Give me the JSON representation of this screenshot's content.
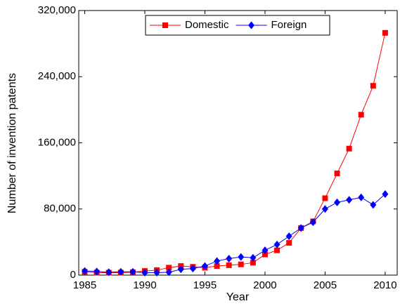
{
  "chart_data": {
    "type": "line",
    "xlabel": "Year",
    "ylabel": "Number of invention patents",
    "x": [
      1985,
      1986,
      1987,
      1988,
      1989,
      1990,
      1991,
      1992,
      1993,
      1994,
      1995,
      1996,
      1997,
      1998,
      1999,
      2000,
      2001,
      2002,
      2003,
      2004,
      2005,
      2006,
      2007,
      2008,
      2009,
      2010
    ],
    "series": [
      {
        "name": "Domestic",
        "color": "#ff0000",
        "marker": "square",
        "values": [
          4000,
          3000,
          3000,
          3000,
          3500,
          5000,
          6000,
          9000,
          11000,
          10000,
          9000,
          11000,
          12000,
          13000,
          15000,
          25000,
          30000,
          39000,
          57000,
          65000,
          93000,
          123000,
          153000,
          194000,
          229000,
          293000
        ]
      },
      {
        "name": "Foreign",
        "color": "#0000ff",
        "marker": "diamond",
        "values": [
          5000,
          4500,
          3500,
          4000,
          4000,
          3000,
          3000,
          3500,
          7000,
          8000,
          11000,
          17000,
          20000,
          22000,
          21000,
          30000,
          37000,
          47000,
          57000,
          64000,
          80000,
          88000,
          91000,
          94000,
          85000,
          98000
        ]
      }
    ],
    "xlim": [
      1984.5,
      2011
    ],
    "xticks": [
      1985,
      1990,
      1995,
      2000,
      2005,
      2010
    ],
    "ylim": [
      0,
      320000
    ],
    "yticks": [
      0,
      {
        "value": 80000,
        "label": "80,000"
      },
      {
        "value": 160000,
        "label": "160,000"
      },
      {
        "value": 240000,
        "label": "240,000"
      },
      {
        "value": 320000,
        "label": "320,000"
      }
    ],
    "legend": "top"
  }
}
